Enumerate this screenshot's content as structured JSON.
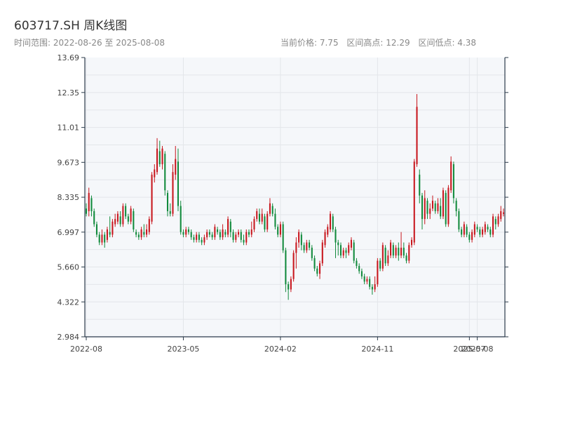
{
  "header": {
    "title": "603717.SH 周K线图",
    "range_text": "时间范围: 2022-08-26 至 2025-08-08",
    "stats": {
      "current": "当前价格: 7.75",
      "high": "区间高点: 12.29",
      "low": "区间低点: 4.38"
    }
  },
  "colors": {
    "up": "#c8161d",
    "down": "#118a3c",
    "plot_bg": "#f5f7fa",
    "grid": "#e3e6ea",
    "axis": "#2b3a4a"
  },
  "chart_data": {
    "type": "candlestick",
    "title": "603717.SH 周K线图",
    "ylim": [
      2.984,
      13.69
    ],
    "yticks": [
      "13.69",
      "12.35",
      "11.01",
      "9.673",
      "8.335",
      "6.997",
      "5.660",
      "4.322",
      "2.984"
    ],
    "xticks": [
      {
        "label": "2022-08",
        "index": 0
      },
      {
        "label": "2023-05",
        "index": 37
      },
      {
        "label": "2024-02",
        "index": 74
      },
      {
        "label": "2024-11",
        "index": 111
      },
      {
        "label": "2025-07",
        "index": 146
      },
      {
        "label": "2025-08",
        "index": 149
      }
    ],
    "candles": [
      [
        7.9,
        7.7,
        8.1,
        7.6
      ],
      [
        7.8,
        8.5,
        8.7,
        7.6
      ],
      [
        8.3,
        7.8,
        8.4,
        7.6
      ],
      [
        7.8,
        7.3,
        7.9,
        7.2
      ],
      [
        7.3,
        6.9,
        7.4,
        6.8
      ],
      [
        6.9,
        6.6,
        7.0,
        6.5
      ],
      [
        6.6,
        6.9,
        7.1,
        6.5
      ],
      [
        6.9,
        6.6,
        7.0,
        6.4
      ],
      [
        6.7,
        7.1,
        7.2,
        6.6
      ],
      [
        7.0,
        6.9,
        7.6,
        6.8
      ],
      [
        6.9,
        7.4,
        7.5,
        6.8
      ],
      [
        7.3,
        7.5,
        7.7,
        7.2
      ],
      [
        7.4,
        7.7,
        7.8,
        7.3
      ],
      [
        7.6,
        7.3,
        7.8,
        7.2
      ],
      [
        7.3,
        8.0,
        8.1,
        7.2
      ],
      [
        8.0,
        7.6,
        8.1,
        7.5
      ],
      [
        7.6,
        7.4,
        7.7,
        7.3
      ],
      [
        7.4,
        7.9,
        8.0,
        7.3
      ],
      [
        7.8,
        7.1,
        7.9,
        7.0
      ],
      [
        7.0,
        6.9,
        7.1,
        6.8
      ],
      [
        6.9,
        6.8,
        7.0,
        6.7
      ],
      [
        6.8,
        7.1,
        7.2,
        6.7
      ],
      [
        7.0,
        6.9,
        7.3,
        6.8
      ],
      [
        6.9,
        7.1,
        7.3,
        6.8
      ],
      [
        7.0,
        7.5,
        7.6,
        6.9
      ],
      [
        7.4,
        9.2,
        9.3,
        7.3
      ],
      [
        9.1,
        9.4,
        9.6,
        8.9
      ],
      [
        9.3,
        10.2,
        10.6,
        9.2
      ],
      [
        10.1,
        9.6,
        10.5,
        9.5
      ],
      [
        9.6,
        10.2,
        10.3,
        9.4
      ],
      [
        10.0,
        8.6,
        10.1,
        8.4
      ],
      [
        8.5,
        7.8,
        8.6,
        7.6
      ],
      [
        7.8,
        7.7,
        8.1,
        7.6
      ],
      [
        7.7,
        9.3,
        9.6,
        7.6
      ],
      [
        9.2,
        9.8,
        10.3,
        9.0
      ],
      [
        9.7,
        8.0,
        10.2,
        7.8
      ],
      [
        8.0,
        7.0,
        8.2,
        6.9
      ],
      [
        7.0,
        6.9,
        7.1,
        6.8
      ],
      [
        6.9,
        7.1,
        7.2,
        6.8
      ],
      [
        7.1,
        7.0,
        7.2,
        6.9
      ],
      [
        7.0,
        6.8,
        7.1,
        6.7
      ],
      [
        6.8,
        6.7,
        6.9,
        6.6
      ],
      [
        6.7,
        6.9,
        7.0,
        6.6
      ],
      [
        6.9,
        6.7,
        7.0,
        6.6
      ],
      [
        6.7,
        6.6,
        6.8,
        6.5
      ],
      [
        6.6,
        6.8,
        6.9,
        6.5
      ],
      [
        6.8,
        7.0,
        7.1,
        6.7
      ],
      [
        7.0,
        6.9,
        7.1,
        6.8
      ],
      [
        6.9,
        6.8,
        7.0,
        6.7
      ],
      [
        6.8,
        7.2,
        7.3,
        6.7
      ],
      [
        7.1,
        7.0,
        7.2,
        6.9
      ],
      [
        7.0,
        6.8,
        7.1,
        6.7
      ],
      [
        6.8,
        7.1,
        7.3,
        6.7
      ],
      [
        7.0,
        6.9,
        7.1,
        6.8
      ],
      [
        6.9,
        7.5,
        7.6,
        6.8
      ],
      [
        7.4,
        7.0,
        7.5,
        6.8
      ],
      [
        7.0,
        6.7,
        7.1,
        6.6
      ],
      [
        6.7,
        6.9,
        7.0,
        6.6
      ],
      [
        6.9,
        7.0,
        7.1,
        6.8
      ],
      [
        7.0,
        6.7,
        7.1,
        6.6
      ],
      [
        6.7,
        6.6,
        6.9,
        6.5
      ],
      [
        6.6,
        7.0,
        7.1,
        6.5
      ],
      [
        7.0,
        6.9,
        7.1,
        6.8
      ],
      [
        6.9,
        7.1,
        7.4,
        6.8
      ],
      [
        7.1,
        7.5,
        7.6,
        7.0
      ],
      [
        7.5,
        7.8,
        7.9,
        7.4
      ],
      [
        7.7,
        7.4,
        7.9,
        7.3
      ],
      [
        7.4,
        7.7,
        7.9,
        7.3
      ],
      [
        7.6,
        7.1,
        7.7,
        7.0
      ],
      [
        7.1,
        7.7,
        7.8,
        7.0
      ],
      [
        7.7,
        8.1,
        8.3,
        7.6
      ],
      [
        8.0,
        7.7,
        8.1,
        7.6
      ],
      [
        7.7,
        7.2,
        7.9,
        7.1
      ],
      [
        7.2,
        6.9,
        7.3,
        6.8
      ],
      [
        6.9,
        7.3,
        7.4,
        6.8
      ],
      [
        7.3,
        6.3,
        7.4,
        6.2
      ],
      [
        6.3,
        5.0,
        6.4,
        4.7
      ],
      [
        5.0,
        4.8,
        5.1,
        4.4
      ],
      [
        4.8,
        5.2,
        5.3,
        4.7
      ],
      [
        5.2,
        6.2,
        6.3,
        5.1
      ],
      [
        6.2,
        6.6,
        6.8,
        5.6
      ],
      [
        6.6,
        7.0,
        7.1,
        6.4
      ],
      [
        6.9,
        6.5,
        7.0,
        6.3
      ],
      [
        6.5,
        6.3,
        6.6,
        6.2
      ],
      [
        6.3,
        6.6,
        6.7,
        6.2
      ],
      [
        6.6,
        6.4,
        6.7,
        6.3
      ],
      [
        6.4,
        6.0,
        6.5,
        5.9
      ],
      [
        6.0,
        5.6,
        6.1,
        5.5
      ],
      [
        5.6,
        5.4,
        5.7,
        5.3
      ],
      [
        5.4,
        5.8,
        5.9,
        5.2
      ],
      [
        5.8,
        6.6,
        6.7,
        5.7
      ],
      [
        6.5,
        7.0,
        7.1,
        6.4
      ],
      [
        6.9,
        7.2,
        7.3,
        6.8
      ],
      [
        7.1,
        7.7,
        7.8,
        7.0
      ],
      [
        7.6,
        7.1,
        7.7,
        7.0
      ],
      [
        7.1,
        6.6,
        7.2,
        6.0
      ],
      [
        6.6,
        6.5,
        6.7,
        6.1
      ],
      [
        6.5,
        6.1,
        6.6,
        6.0
      ],
      [
        6.1,
        6.3,
        6.4,
        6.0
      ],
      [
        6.3,
        6.2,
        6.4,
        6.0
      ],
      [
        6.2,
        6.5,
        6.6,
        6.1
      ],
      [
        6.4,
        6.7,
        6.8,
        6.3
      ],
      [
        6.6,
        5.9,
        6.7,
        5.8
      ],
      [
        5.9,
        5.7,
        6.0,
        5.6
      ],
      [
        5.7,
        5.5,
        5.8,
        5.4
      ],
      [
        5.5,
        5.3,
        5.6,
        5.2
      ],
      [
        5.3,
        5.1,
        5.4,
        5.0
      ],
      [
        5.1,
        5.2,
        5.3,
        5.0
      ],
      [
        5.2,
        4.9,
        5.3,
        4.8
      ],
      [
        4.9,
        4.8,
        5.0,
        4.6
      ],
      [
        4.8,
        5.0,
        5.3,
        4.7
      ],
      [
        5.0,
        5.9,
        6.0,
        4.9
      ],
      [
        5.9,
        5.6,
        6.0,
        5.5
      ],
      [
        5.6,
        6.5,
        6.6,
        5.5
      ],
      [
        6.4,
        5.8,
        6.5,
        5.7
      ],
      [
        5.8,
        6.1,
        6.3,
        5.7
      ],
      [
        6.1,
        6.6,
        6.7,
        6.0
      ],
      [
        6.5,
        6.1,
        6.6,
        6.0
      ],
      [
        6.1,
        6.4,
        6.5,
        6.0
      ],
      [
        6.4,
        6.1,
        6.6,
        5.9
      ],
      [
        6.1,
        6.4,
        7.0,
        6.0
      ],
      [
        6.4,
        6.1,
        6.6,
        6.0
      ],
      [
        6.1,
        5.9,
        6.2,
        5.8
      ],
      [
        5.9,
        6.5,
        6.6,
        5.8
      ],
      [
        6.5,
        6.7,
        6.8,
        6.4
      ],
      [
        6.6,
        9.7,
        9.8,
        6.5
      ],
      [
        9.6,
        11.8,
        12.29,
        9.5
      ],
      [
        9.2,
        8.4,
        9.4,
        8.1
      ],
      [
        8.4,
        7.5,
        8.5,
        7.1
      ],
      [
        7.5,
        8.3,
        8.6,
        7.3
      ],
      [
        8.2,
        7.7,
        8.3,
        7.5
      ],
      [
        7.7,
        7.9,
        8.1,
        7.5
      ],
      [
        7.9,
        8.2,
        8.4,
        7.8
      ],
      [
        8.1,
        7.8,
        8.2,
        7.7
      ],
      [
        7.8,
        8.1,
        8.3,
        7.7
      ],
      [
        8.0,
        7.6,
        8.3,
        7.5
      ],
      [
        7.6,
        8.6,
        8.7,
        7.5
      ],
      [
        8.5,
        7.3,
        8.6,
        7.2
      ],
      [
        7.3,
        8.7,
        8.8,
        7.2
      ],
      [
        8.6,
        9.7,
        9.9,
        8.5
      ],
      [
        9.6,
        8.3,
        9.7,
        8.1
      ],
      [
        8.2,
        7.8,
        8.3,
        7.6
      ],
      [
        7.8,
        7.1,
        7.9,
        7.0
      ],
      [
        7.1,
        6.9,
        7.2,
        6.8
      ],
      [
        6.9,
        7.3,
        7.4,
        6.8
      ],
      [
        7.2,
        6.9,
        7.3,
        6.8
      ],
      [
        6.9,
        6.7,
        7.0,
        6.6
      ],
      [
        6.7,
        7.0,
        7.1,
        6.6
      ],
      [
        6.9,
        7.3,
        7.4,
        6.8
      ],
      [
        7.2,
        7.1,
        7.3,
        7.0
      ],
      [
        7.1,
        6.9,
        7.2,
        6.8
      ],
      [
        6.9,
        7.1,
        7.2,
        6.8
      ],
      [
        7.0,
        7.3,
        7.4,
        6.9
      ],
      [
        7.2,
        7.1,
        7.3,
        7.0
      ],
      [
        7.1,
        6.9,
        7.2,
        6.8
      ],
      [
        6.9,
        7.6,
        7.7,
        6.8
      ],
      [
        7.5,
        7.3,
        7.6,
        7.1
      ],
      [
        7.3,
        7.6,
        7.7,
        7.2
      ],
      [
        7.5,
        7.8,
        8.0,
        7.4
      ],
      [
        7.7,
        7.75,
        7.9,
        7.6
      ]
    ]
  }
}
